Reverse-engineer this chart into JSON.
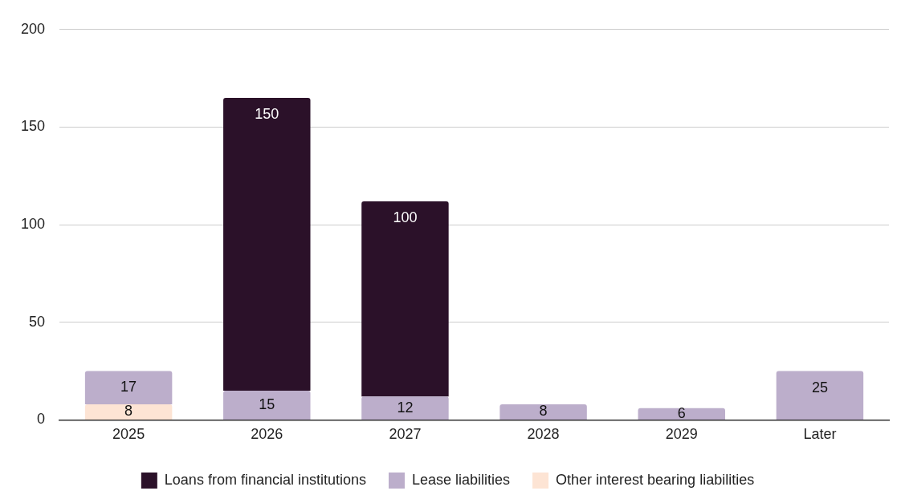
{
  "chart_data": {
    "type": "bar",
    "stacked": true,
    "categories": [
      "2025",
      "2026",
      "2027",
      "2028",
      "2029",
      "Later"
    ],
    "series": [
      {
        "name": "Other interest bearing liabilities",
        "color": "#fde4d4",
        "values": [
          8,
          null,
          null,
          null,
          null,
          null
        ]
      },
      {
        "name": "Lease liabilities",
        "color": "#bcaecb",
        "values": [
          17,
          15,
          12,
          8,
          6,
          25
        ]
      },
      {
        "name": "Loans from financial institutions",
        "color": "#2b1129",
        "values": [
          null,
          150,
          100,
          null,
          null,
          null
        ]
      }
    ],
    "ylim": [
      0,
      200
    ],
    "yticks": [
      0,
      50,
      100,
      150,
      200
    ],
    "grid": "y",
    "legend": "bottom",
    "data_labels": true
  }
}
